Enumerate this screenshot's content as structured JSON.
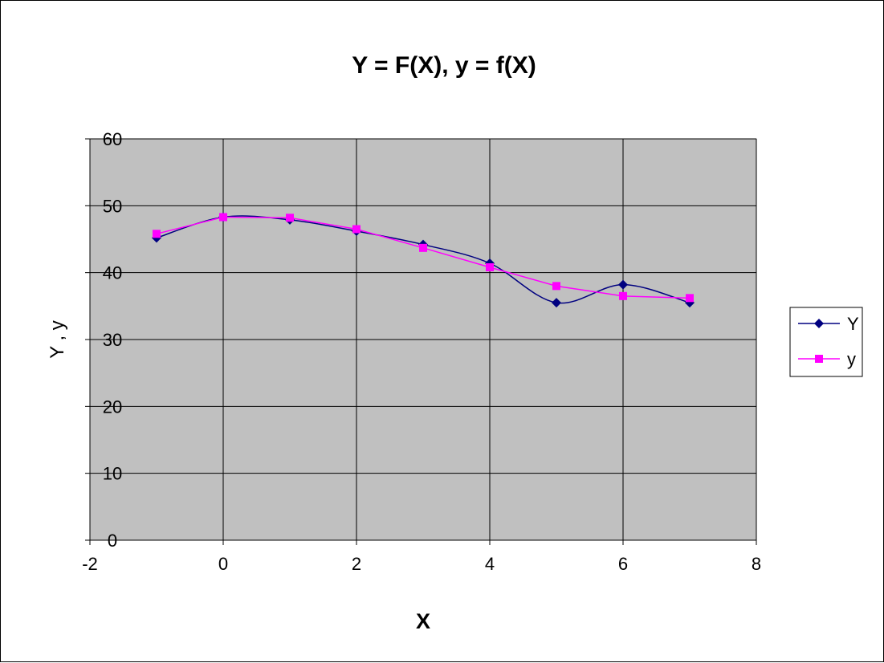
{
  "chart_data": {
    "type": "line",
    "title": "Y = F(X), y = f(X)",
    "xlabel": "X",
    "ylabel": "Y , y",
    "xlim": [
      -2,
      8
    ],
    "ylim": [
      0,
      60
    ],
    "x_ticks": [
      -2,
      0,
      2,
      4,
      6,
      8
    ],
    "y_ticks": [
      0,
      10,
      20,
      30,
      40,
      50,
      60
    ],
    "grid": true,
    "plot_background": "#C0C0C0",
    "legend_position": "right",
    "series": [
      {
        "name": "Y",
        "color": "#000080",
        "marker": "diamond",
        "smooth": true,
        "points": [
          [
            -1,
            45.2
          ],
          [
            0,
            48.3
          ],
          [
            1,
            47.9
          ],
          [
            2,
            46.2
          ],
          [
            3,
            44.2
          ],
          [
            4,
            41.4
          ],
          [
            5,
            35.5
          ],
          [
            6,
            38.2
          ],
          [
            7,
            35.5
          ]
        ]
      },
      {
        "name": "y",
        "color": "#FF00FF",
        "marker": "square",
        "smooth": false,
        "points": [
          [
            -1,
            45.8
          ],
          [
            0,
            48.3
          ],
          [
            1,
            48.2
          ],
          [
            2,
            46.5
          ],
          [
            3,
            43.7
          ],
          [
            4,
            40.8
          ],
          [
            5,
            38.0
          ],
          [
            6,
            36.5
          ],
          [
            7,
            36.2
          ]
        ]
      }
    ]
  }
}
